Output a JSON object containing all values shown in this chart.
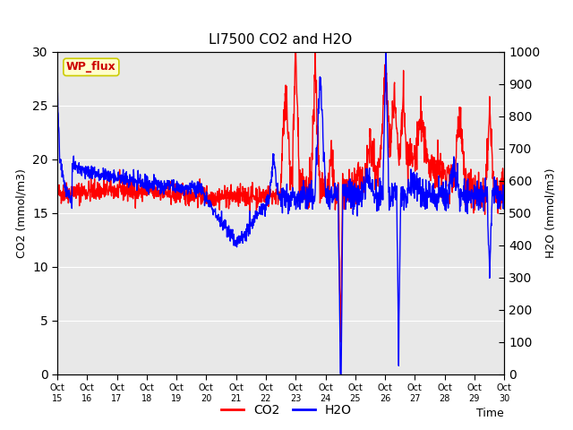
{
  "title": "LI7500 CO2 and H2O",
  "xlabel": "Time",
  "ylabel_left": "CO2 (mmol/m3)",
  "ylabel_right": "H2O (mmol/m3)",
  "ylim_left": [
    0,
    30
  ],
  "ylim_right": [
    0,
    1000
  ],
  "yticks_left": [
    0,
    5,
    10,
    15,
    20,
    25,
    30
  ],
  "yticks_right": [
    0,
    100,
    200,
    300,
    400,
    500,
    600,
    700,
    800,
    900,
    1000
  ],
  "xtick_labels": [
    "Oct 15",
    "Oct 16",
    "Oct 17",
    "Oct 18",
    "Oct 19",
    "Oct 20",
    "Oct 21",
    "Oct 22",
    "Oct 23",
    "Oct 24",
    "Oct 25",
    "Oct 26",
    "Oct 27",
    "Oct 28",
    "Oct 29",
    "Oct 30"
  ],
  "co2_color": "#ff0000",
  "h2o_color": "#0000ff",
  "background_color": "#e8e8e8",
  "fig_background": "#ffffff",
  "legend_label_co2": "CO2",
  "legend_label_h2o": "H2O",
  "site_label": "WP_flux",
  "line_width": 1.0,
  "title_fontsize": 11
}
